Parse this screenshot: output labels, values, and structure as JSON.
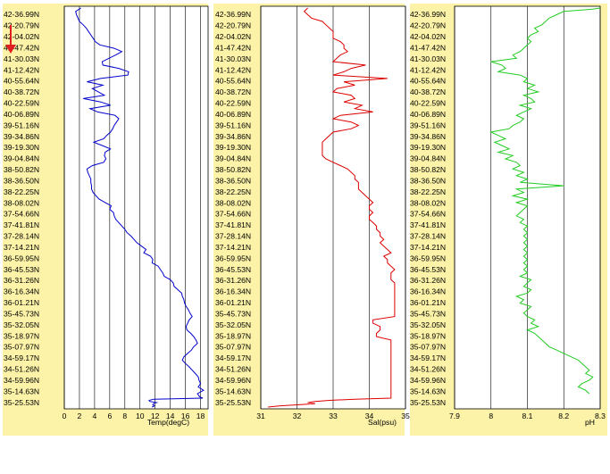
{
  "indicator": {
    "icon": "arrow-down-icon",
    "color": "#e02020"
  },
  "colors": {
    "panel_bg": "#fcf3a8",
    "plot_bg": "#ffffff",
    "grid": "#000000",
    "temp_line": "#0000cc",
    "sal_line": "#dd0000",
    "ph_line": "#22cc22"
  },
  "latitudes": [
    "42-36.99N",
    "42-20.79N",
    "42-04.02N",
    "41-47.42N",
    "41-30.03N",
    "41-12.42N",
    "40-55.64N",
    "40-38.72N",
    "40-22.59N",
    "40-06.89N",
    "39-51.16N",
    "39-34.86N",
    "39-19.30N",
    "39-04.84N",
    "38-50.82N",
    "38-36.50N",
    "38-22.25N",
    "38-08.02N",
    "37-54.66N",
    "37-41.81N",
    "37-28.14N",
    "37-14.21N",
    "36-59.95N",
    "36-45.53N",
    "36-31.26N",
    "36-16.34N",
    "36-01.21N",
    "35-45.73N",
    "35-32.05N",
    "35-18.97N",
    "35-07.97N",
    "34-59.17N",
    "34-51.26N",
    "34-59.96N",
    "35-14.63N",
    "35-25.53N"
  ],
  "chart_data": [
    {
      "type": "line",
      "xlabel": "Temp(degC)",
      "xlim": [
        0,
        19
      ],
      "xticks": [
        "0",
        "2",
        "4",
        "6",
        "8",
        "10",
        "12",
        "14",
        "16",
        "18"
      ],
      "orientation": "vertical-profile",
      "y_categories_key": "latitudes",
      "x": [
        2.2,
        1.5,
        1.6,
        1.8,
        2.0,
        2.5,
        2.9,
        3.2,
        3.5,
        3.8,
        4.1,
        4.7,
        6.6,
        7.6,
        6.8,
        5.9,
        5.0,
        5.1,
        7.2,
        8.5,
        8.4,
        4.8,
        3.0,
        5.1,
        3.7,
        4.5,
        5.3,
        2.5,
        4.8,
        6.1,
        3.4,
        4.4,
        6.7,
        7.2,
        6.9,
        6.6,
        6.4,
        6.1,
        5.6,
        5.2,
        3.9,
        5.0,
        6.1,
        5.4,
        5.3,
        5.5,
        5.2,
        3.7,
        3.0,
        3.1,
        3.3,
        3.5,
        3.5,
        3.6,
        3.6,
        3.8,
        4.2,
        4.6,
        5.4,
        6.2,
        6.0,
        6.5,
        6.6,
        6.8,
        7.2,
        7.6,
        8.0,
        8.3,
        8.8,
        9.2,
        9.6,
        10.2,
        10.8,
        10.5,
        11.4,
        11.7,
        11.6,
        12.4,
        12.7,
        13.0,
        13.2,
        14.0,
        14.4,
        14.5,
        15.0,
        15.5,
        15.6,
        15.8,
        15.9,
        16.1,
        16.4,
        16.6,
        16.9,
        16.5,
        16.3,
        16.1,
        16.2,
        16.7,
        17.1,
        17.4,
        17.6,
        17.1,
        16.8,
        16.3,
        15.8,
        15.6,
        16.0,
        16.5,
        16.9,
        17.3,
        17.7,
        17.8,
        18.0,
        17.7,
        18.4,
        17.6,
        17.9,
        18.3,
        11.8,
        11.2,
        11.3,
        12.2,
        11.8,
        11.7,
        11.9,
        11.6
      ],
      "y": [
        0,
        0.3,
        0.6,
        0.9,
        1.2,
        1.5,
        1.8,
        2.1,
        2.4,
        2.7,
        3.0,
        3.3,
        3.6,
        3.9,
        4.2,
        4.5,
        4.8,
        5.1,
        5.4,
        5.7,
        6.0,
        6.3,
        6.6,
        6.9,
        7.2,
        7.5,
        7.8,
        8.1,
        8.4,
        8.7,
        9.0,
        9.3,
        9.6,
        9.9,
        10.2,
        10.5,
        10.8,
        11.1,
        11.4,
        11.7,
        12.0,
        12.3,
        12.6,
        12.9,
        13.2,
        13.5,
        13.8,
        14.1,
        14.4,
        14.7,
        15.0,
        15.3,
        15.6,
        15.9,
        16.2,
        16.5,
        16.8,
        17.1,
        17.4,
        17.7,
        18.0,
        18.3,
        18.6,
        18.9,
        19.2,
        19.5,
        19.8,
        20.1,
        20.4,
        20.7,
        21.0,
        21.3,
        21.6,
        21.9,
        22.2,
        22.5,
        22.8,
        23.1,
        23.4,
        23.7,
        24.0,
        24.3,
        24.6,
        24.9,
        25.2,
        25.5,
        25.8,
        26.1,
        26.4,
        26.7,
        27.0,
        27.3,
        27.6,
        27.9,
        28.2,
        28.5,
        28.8,
        29.1,
        29.4,
        29.7,
        30.0,
        30.3,
        30.6,
        30.9,
        31.2,
        31.5,
        31.8,
        32.1,
        32.4,
        32.7,
        33.0,
        33.3,
        33.6,
        33.9,
        34.2,
        34.5,
        34.8,
        34.9,
        35.0,
        35.1,
        35.2,
        35.3,
        35.4,
        35.5,
        35.6,
        35.7
      ]
    },
    {
      "type": "line",
      "xlabel": "Sal(psu)",
      "xlim": [
        31,
        35
      ],
      "xticks": [
        "31",
        "32",
        "33",
        "34",
        "35"
      ],
      "orientation": "vertical-profile",
      "y_categories_key": "latitudes",
      "x": [
        32.3,
        32.2,
        32.3,
        32.4,
        32.7,
        32.8,
        32.9,
        33.0,
        33.0,
        33.0,
        33.2,
        33.3,
        33.3,
        33.4,
        33.2,
        33.1,
        33.0,
        33.9,
        33.5,
        33.3,
        33.0,
        34.5,
        33.3,
        33.6,
        33.1,
        33.0,
        33.5,
        33.6,
        33.3,
        33.8,
        33.6,
        34.1,
        33.2,
        33.0,
        33.5,
        33.7,
        33.5,
        33.0,
        32.9,
        32.8,
        32.7,
        32.7,
        32.7,
        32.7,
        32.7,
        32.8,
        33.0,
        33.2,
        33.4,
        33.5,
        33.6,
        33.6,
        33.7,
        33.7,
        33.7,
        33.8,
        33.9,
        34.0,
        34.1,
        34.0,
        34.0,
        34.1,
        34.0,
        34.0,
        34.1,
        34.2,
        34.2,
        34.3,
        34.3,
        34.4,
        34.3,
        34.4,
        34.5,
        34.6,
        34.4,
        34.5,
        34.5,
        34.6,
        34.7,
        34.6,
        34.6,
        34.6,
        34.7,
        34.7,
        34.7,
        34.7,
        34.7,
        34.7,
        34.7,
        34.7,
        34.7,
        34.7,
        34.7,
        34.1,
        34.1,
        34.3,
        34.3,
        34.2,
        34.2,
        34.6,
        34.6,
        34.6,
        34.6,
        34.6,
        34.6,
        34.6,
        34.6,
        34.6,
        34.6,
        34.6,
        34.6,
        34.6,
        34.6,
        34.6,
        34.6,
        34.6,
        34.6,
        34.6,
        33.6,
        32.9,
        32.5,
        32.3,
        32.5,
        32.0,
        31.5,
        31.2
      ],
      "y": [
        0,
        0.3,
        0.6,
        0.9,
        1.2,
        1.5,
        1.8,
        2.1,
        2.4,
        2.7,
        3.0,
        3.3,
        3.6,
        3.9,
        4.2,
        4.5,
        4.8,
        5.1,
        5.4,
        5.7,
        6.0,
        6.3,
        6.6,
        6.9,
        7.2,
        7.5,
        7.8,
        8.1,
        8.4,
        8.7,
        9.0,
        9.3,
        9.6,
        9.9,
        10.2,
        10.5,
        10.8,
        11.1,
        11.4,
        11.7,
        12.0,
        12.3,
        12.6,
        12.9,
        13.2,
        13.5,
        13.8,
        14.1,
        14.4,
        14.7,
        15.0,
        15.3,
        15.6,
        15.9,
        16.2,
        16.5,
        16.8,
        17.1,
        17.4,
        17.7,
        18.0,
        18.3,
        18.6,
        18.9,
        19.2,
        19.5,
        19.8,
        20.1,
        20.4,
        20.7,
        21.0,
        21.3,
        21.6,
        21.9,
        22.2,
        22.5,
        22.8,
        23.1,
        23.4,
        23.7,
        24.0,
        24.3,
        24.6,
        24.9,
        25.2,
        25.5,
        25.8,
        26.1,
        26.4,
        26.7,
        27.0,
        27.3,
        27.6,
        27.9,
        28.2,
        28.5,
        28.8,
        29.1,
        29.4,
        29.7,
        30.0,
        30.3,
        30.6,
        30.9,
        31.2,
        31.5,
        31.8,
        32.1,
        32.4,
        32.7,
        33.0,
        33.3,
        33.6,
        33.9,
        34.2,
        34.5,
        34.8,
        34.9,
        35.0,
        35.1,
        35.2,
        35.3,
        35.4,
        35.5,
        35.6,
        35.7
      ]
    },
    {
      "type": "line",
      "xlabel": "pH",
      "xlim": [
        7.9,
        8.3
      ],
      "xticks": [
        "7.9",
        "8",
        "8.1",
        "8.2",
        "8.3"
      ],
      "orientation": "vertical-profile",
      "y_categories_key": "latitudes",
      "x": [
        8.3,
        8.28,
        8.2,
        8.18,
        8.16,
        8.15,
        8.14,
        8.12,
        8.13,
        8.11,
        8.1,
        8.11,
        8.1,
        8.09,
        8.08,
        8.06,
        8.07,
        8.0,
        8.03,
        8.04,
        8.02,
        8.08,
        8.1,
        8.09,
        8.12,
        8.1,
        8.13,
        8.09,
        8.11,
        8.12,
        8.08,
        8.11,
        8.09,
        8.07,
        8.09,
        8.08,
        8.06,
        8.05,
        8.0,
        8.02,
        8.04,
        8.01,
        8.03,
        8.05,
        8.02,
        8.06,
        8.04,
        8.07,
        8.08,
        8.06,
        8.09,
        8.07,
        8.1,
        8.08,
        8.2,
        8.07,
        8.09,
        8.06,
        8.1,
        8.07,
        8.1,
        8.09,
        8.08,
        8.07,
        8.09,
        8.08,
        8.1,
        8.09,
        8.1,
        8.09,
        8.1,
        8.09,
        8.1,
        8.09,
        8.1,
        8.09,
        8.1,
        8.09,
        8.1,
        8.09,
        8.1,
        8.08,
        8.11,
        8.1,
        8.09,
        8.11,
        8.1,
        8.07,
        8.09,
        8.08,
        8.11,
        8.1,
        8.09,
        8.1,
        8.12,
        8.11,
        8.13,
        8.1,
        8.12,
        8.13,
        8.14,
        8.15,
        8.16,
        8.18,
        8.2,
        8.22,
        8.24,
        8.25,
        8.26,
        8.27,
        8.26,
        8.28,
        8.27,
        8.25,
        8.24,
        8.26,
        8.27
      ],
      "y": [
        0,
        0.1,
        0.3,
        0.6,
        0.9,
        1.2,
        1.5,
        1.8,
        2.1,
        2.4,
        2.7,
        3.0,
        3.3,
        3.6,
        3.9,
        4.2,
        4.5,
        4.8,
        5.1,
        5.4,
        5.7,
        6.0,
        6.3,
        6.6,
        6.9,
        7.2,
        7.5,
        7.8,
        8.1,
        8.4,
        8.7,
        9.0,
        9.3,
        9.6,
        9.9,
        10.2,
        10.5,
        10.8,
        11.1,
        11.4,
        11.7,
        12.0,
        12.3,
        12.6,
        12.9,
        13.2,
        13.5,
        13.8,
        14.1,
        14.4,
        14.7,
        15.0,
        15.3,
        15.6,
        15.9,
        16.2,
        16.5,
        16.8,
        17.1,
        17.4,
        17.7,
        18.0,
        18.3,
        18.6,
        18.9,
        19.2,
        19.5,
        19.8,
        20.1,
        20.4,
        20.7,
        21.0,
        21.3,
        21.6,
        21.9,
        22.2,
        22.5,
        22.8,
        23.1,
        23.4,
        23.7,
        24.0,
        24.3,
        24.6,
        24.9,
        25.2,
        25.5,
        25.8,
        26.1,
        26.4,
        26.7,
        27.0,
        27.3,
        27.6,
        27.9,
        28.2,
        28.5,
        28.8,
        29.1,
        29.4,
        29.7,
        30.0,
        30.3,
        30.6,
        30.9,
        31.2,
        31.5,
        31.8,
        32.1,
        32.4,
        32.7,
        33.0,
        33.3,
        33.6,
        33.9,
        34.2,
        34.5
      ]
    }
  ]
}
